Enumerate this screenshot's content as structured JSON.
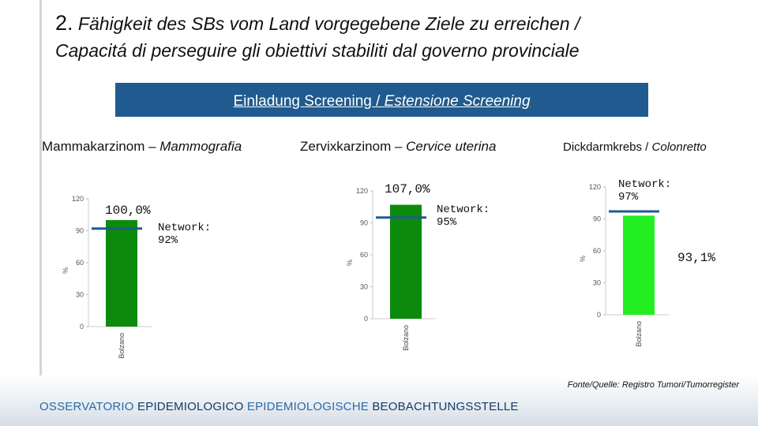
{
  "title": {
    "number": "2.",
    "line1": " Fähigkeit des SBs vom Land vorgegebene Ziele zu erreichen /",
    "line2": "Capacitá di perseguire gli obiettivi stabiliti dal governo provinciale"
  },
  "banner": {
    "part1": "Einladung Screening / ",
    "part2": "Estensione Screening"
  },
  "columns": [
    {
      "de": "Mammakarzinom – ",
      "it": "Mammografia"
    },
    {
      "de": "Zervixkarzinom – ",
      "it": "Cervice uterina"
    },
    {
      "de": "Dickdarmkrebs / ",
      "it": "Colonretto"
    }
  ],
  "colors": {
    "banner": "#1f5b8e",
    "bar_dark_green": "#0c8a0c",
    "bar_bright_green": "#22ee22",
    "network_line": "#1f5b8e"
  },
  "chart_data": [
    {
      "type": "bar",
      "categories": [
        "Bolzano"
      ],
      "values": [
        100.0
      ],
      "value_label": "100,0%",
      "reference_line": {
        "label": "Network:\n92%",
        "value": 92
      },
      "ylabel": "%",
      "yticks": [
        0,
        30,
        60,
        90,
        120
      ],
      "ylim": [
        0,
        120
      ],
      "bar_color": "#0c8a0c"
    },
    {
      "type": "bar",
      "categories": [
        "Bolzano"
      ],
      "values": [
        107.0
      ],
      "value_label": "107,0%",
      "reference_line": {
        "label": "Network:\n95%",
        "value": 95
      },
      "ylabel": "%",
      "yticks": [
        0,
        30,
        60,
        90,
        120
      ],
      "ylim": [
        0,
        120
      ],
      "bar_color": "#0c8a0c"
    },
    {
      "type": "bar",
      "categories": [
        "Bolzano"
      ],
      "values": [
        93.1
      ],
      "value_label": "93,1%",
      "reference_line": {
        "label": "Network:\n97%",
        "value": 97
      },
      "ylabel": "%",
      "yticks": [
        0,
        30,
        60,
        90,
        120
      ],
      "ylim": [
        0,
        120
      ],
      "bar_color": "#22ee22"
    }
  ],
  "source": "Fonte/Quelle: Registro Tumori/Tumorregister",
  "footer": {
    "part1": "OSSERVATORIO ",
    "part2": "EPIDEMIOLOGICO ",
    "part3": "EPIDEMIOLOGISCHE ",
    "part4": "BEOBACHTUNGSSTELLE"
  }
}
